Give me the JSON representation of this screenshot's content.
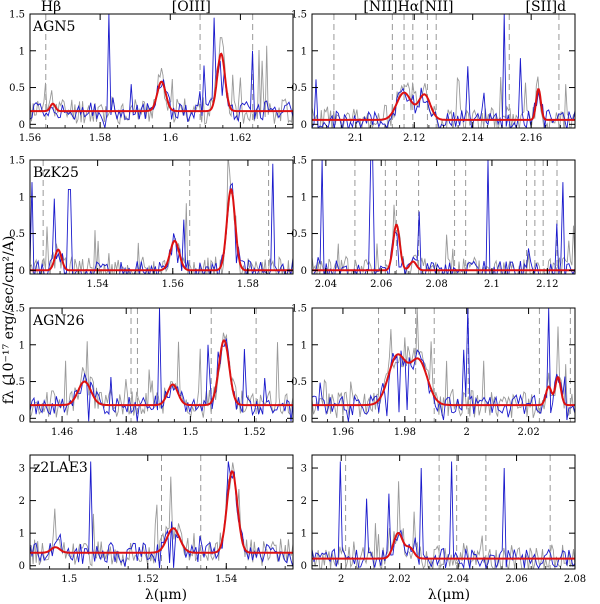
{
  "figure": {
    "ylabel": "fλ (10⁻¹⁷ erg/sec/cm²/A)",
    "xlabel_left": "λ(μm)",
    "xlabel_right": "λ(μm)",
    "colors": {
      "model": "#dd1111",
      "spectrum": "#1a1acc",
      "raw": "#9a9a9a",
      "sky": "#999999"
    }
  },
  "chart_data": [
    {
      "type": "line",
      "row": 0,
      "col": 0,
      "name": "AGN5",
      "xlim": [
        1.56,
        1.635
      ],
      "ylim": [
        -0.05,
        1.5
      ],
      "xticks": [
        1.56,
        1.58,
        1.6,
        1.62
      ],
      "xtick_labels": [
        "1.56",
        "1.58",
        "1.6",
        "1.62"
      ],
      "yticks": [
        0,
        0.5,
        1,
        1.5
      ],
      "ytick_labels": [
        "0",
        "0.5",
        "1",
        "1.5"
      ],
      "top_labels": [
        {
          "text": "Hβ",
          "x": 1.566
        },
        {
          "text": "[OIII]",
          "x": 1.606
        }
      ],
      "baseline": 0.18,
      "gaussians": [
        {
          "center": 1.5665,
          "amp": 0.1,
          "sigma": 0.0007
        },
        {
          "center": 1.5975,
          "amp": 0.4,
          "sigma": 0.0012
        },
        {
          "center": 1.6145,
          "amp": 0.78,
          "sigma": 0.0011
        }
      ],
      "sky_lines": [
        1.5645,
        1.6085,
        1.6235
      ],
      "blue_spikes": [
        {
          "x": 1.5825,
          "y": 1.5
        },
        {
          "x": 1.6095,
          "y": 0.8
        },
        {
          "x": 1.6125,
          "y": 1.45
        },
        {
          "x": 1.6235,
          "y": 1.0
        }
      ],
      "seed": 11
    },
    {
      "type": "line",
      "row": 0,
      "col": 1,
      "name": "",
      "xlim": [
        2.085,
        2.175
      ],
      "ylim": [
        -0.05,
        1.5
      ],
      "xticks": [
        2.1,
        2.12,
        2.14,
        2.16
      ],
      "xtick_labels": [
        "2.1",
        "2.12",
        "2.14",
        "2.16"
      ],
      "yticks": [
        0,
        0.5,
        1,
        1.5
      ],
      "ytick_labels": [
        "0",
        "0.5",
        "1",
        "1.5"
      ],
      "top_labels": [
        {
          "text": "[NII]Hα[NII]",
          "x": 2.118
        },
        {
          "text": "[SII]d",
          "x": 2.165
        }
      ],
      "baseline": 0.06,
      "gaussians": [
        {
          "center": 2.1165,
          "amp": 0.37,
          "sigma": 0.0025
        },
        {
          "center": 2.1235,
          "amp": 0.34,
          "sigma": 0.002
        },
        {
          "center": 2.1625,
          "amp": 0.42,
          "sigma": 0.0008
        }
      ],
      "sky_lines": [
        2.0925,
        2.1125,
        2.1165,
        2.1195,
        2.1245,
        2.1275,
        2.1525,
        2.1695
      ],
      "blue_spikes": [
        {
          "x": 2.1505,
          "y": 1.5
        },
        {
          "x": 2.1565,
          "y": 0.9
        }
      ],
      "seed": 23
    },
    {
      "type": "line",
      "row": 1,
      "col": 0,
      "name": "BzK25",
      "xlim": [
        1.522,
        1.592
      ],
      "ylim": [
        -0.05,
        1.5
      ],
      "xticks": [
        1.54,
        1.56,
        1.58
      ],
      "xtick_labels": [
        "1.54",
        "1.56",
        "1.58"
      ],
      "yticks": [
        0,
        0.5,
        1,
        1.5
      ],
      "ytick_labels": [
        "0",
        "0.5",
        "1",
        "1.5"
      ],
      "top_labels": [],
      "baseline": 0.0,
      "gaussians": [
        {
          "center": 1.5295,
          "amp": 0.28,
          "sigma": 0.0009
        },
        {
          "center": 1.5605,
          "amp": 0.4,
          "sigma": 0.0012
        },
        {
          "center": 1.5755,
          "amp": 1.1,
          "sigma": 0.0011
        }
      ],
      "sky_lines": [
        1.5255,
        1.5645,
        1.5855
      ],
      "blue_spikes": [
        {
          "x": 1.5225,
          "y": 1.2
        },
        {
          "x": 1.5325,
          "y": 1.1
        },
        {
          "x": 1.5865,
          "y": 1.45
        }
      ],
      "seed": 37
    },
    {
      "type": "line",
      "row": 1,
      "col": 1,
      "name": "",
      "xlim": [
        2.035,
        2.13
      ],
      "ylim": [
        -0.05,
        1.5
      ],
      "xticks": [
        2.04,
        2.06,
        2.08,
        2.1,
        2.12
      ],
      "xtick_labels": [
        "2.04",
        "2.06",
        "2.08",
        "2.1",
        "2.12"
      ],
      "yticks": [
        0,
        0.5,
        1,
        1.5
      ],
      "ytick_labels": [
        "0",
        "0.5",
        "1",
        "1.5"
      ],
      "top_labels": [],
      "baseline": 0.0,
      "gaussians": [
        {
          "center": 2.0655,
          "amp": 0.62,
          "sigma": 0.0012
        },
        {
          "center": 2.0715,
          "amp": 0.12,
          "sigma": 0.0012
        }
      ],
      "sky_lines": [
        2.0505,
        2.0615,
        2.0655,
        2.0735,
        2.0865,
        2.0905,
        2.1125,
        2.1155,
        2.1185,
        2.1235
      ],
      "blue_spikes": [
        {
          "x": 2.0385,
          "y": 1.5
        },
        {
          "x": 2.0565,
          "y": 1.5
        },
        {
          "x": 2.0735,
          "y": 0.8
        },
        {
          "x": 2.0985,
          "y": 1.5
        },
        {
          "x": 2.1255,
          "y": 1.2
        }
      ],
      "seed": 41
    },
    {
      "type": "line",
      "row": 2,
      "col": 0,
      "name": "AGN26",
      "xlim": [
        1.45,
        1.532
      ],
      "ylim": [
        -0.05,
        1.5
      ],
      "xticks": [
        1.46,
        1.48,
        1.5,
        1.52
      ],
      "xtick_labels": [
        "1.46",
        "1.48",
        "1.5",
        "1.52"
      ],
      "yticks": [
        0,
        0.5,
        1,
        1.5
      ],
      "ytick_labels": [
        "0",
        "0.5",
        "1",
        "1.5"
      ],
      "top_labels": [],
      "baseline": 0.18,
      "gaussians": [
        {
          "center": 1.467,
          "amp": 0.32,
          "sigma": 0.002
        },
        {
          "center": 1.4945,
          "amp": 0.28,
          "sigma": 0.0016
        },
        {
          "center": 1.5105,
          "amp": 0.88,
          "sigma": 0.0016
        }
      ],
      "sky_lines": [
        1.4815,
        1.4835,
        1.5065,
        1.5205
      ],
      "blue_spikes": [
        {
          "x": 1.4905,
          "y": 1.5
        },
        {
          "x": 1.5055,
          "y": 1.0
        }
      ],
      "seed": 53
    },
    {
      "type": "line",
      "row": 2,
      "col": 1,
      "name": "",
      "xlim": [
        1.95,
        2.035
      ],
      "ylim": [
        -0.05,
        1.5
      ],
      "xticks": [
        1.96,
        1.98,
        2,
        2.02
      ],
      "xtick_labels": [
        "1.96",
        "1.98",
        "2",
        "2.02"
      ],
      "yticks": [
        0,
        0.5,
        1,
        1.5
      ],
      "ytick_labels": [
        "0",
        "0.5",
        "1",
        "1.5"
      ],
      "top_labels": [],
      "baseline": 0.18,
      "gaussians": [
        {
          "center": 1.9775,
          "amp": 0.66,
          "sigma": 0.0028
        },
        {
          "center": 1.9845,
          "amp": 0.6,
          "sigma": 0.0028
        },
        {
          "center": 2.0265,
          "amp": 0.25,
          "sigma": 0.0009
        },
        {
          "center": 2.0295,
          "amp": 0.38,
          "sigma": 0.0009
        }
      ],
      "sky_lines": [
        1.9715,
        1.9835,
        1.9895,
        2.0005,
        2.0235,
        2.0335
      ],
      "blue_spikes": [
        {
          "x": 2.0005,
          "y": 1.5
        },
        {
          "x": 2.0265,
          "y": 1.5
        }
      ],
      "seed": 67
    },
    {
      "type": "line",
      "row": 3,
      "col": 0,
      "name": "z2LAE3",
      "xlim": [
        1.49,
        1.557
      ],
      "ylim": [
        -0.1,
        3.4
      ],
      "xticks": [
        1.5,
        1.52,
        1.54
      ],
      "xtick_labels": [
        "1.5",
        "1.52",
        "1.54"
      ],
      "yticks": [
        0,
        1,
        2,
        3
      ],
      "ytick_labels": [
        "0",
        "1",
        "2",
        "3"
      ],
      "top_labels": [],
      "baseline": 0.4,
      "gaussians": [
        {
          "center": 1.4965,
          "amp": 0.17,
          "sigma": 0.0011
        },
        {
          "center": 1.5265,
          "amp": 0.75,
          "sigma": 0.0016
        },
        {
          "center": 1.5415,
          "amp": 2.5,
          "sigma": 0.0013
        }
      ],
      "sky_lines": [
        1.5235,
        1.5335
      ],
      "blue_spikes": [
        {
          "x": 1.5055,
          "y": 3.2
        },
        {
          "x": 1.5405,
          "y": 3.2
        }
      ],
      "seed": 79
    },
    {
      "type": "line",
      "row": 3,
      "col": 1,
      "name": "",
      "xlim": [
        1.99,
        2.08
      ],
      "ylim": [
        -0.1,
        3.4
      ],
      "xticks": [
        2,
        2.02,
        2.04,
        2.06,
        2.08
      ],
      "xtick_labels": [
        "2",
        "2.02",
        "2.04",
        "2.06",
        "2.08"
      ],
      "yticks": [
        0,
        1,
        2,
        3
      ],
      "ytick_labels": [
        "0",
        "1",
        "2",
        "3"
      ],
      "top_labels": [],
      "baseline": 0.22,
      "gaussians": [
        {
          "center": 2.0195,
          "amp": 0.78,
          "sigma": 0.0016
        },
        {
          "center": 2.0235,
          "amp": 0.32,
          "sigma": 0.0014
        }
      ],
      "sky_lines": [
        2.0015,
        2.0335,
        2.0395,
        2.0495,
        2.0715
      ],
      "blue_spikes": [
        {
          "x": 1.9995,
          "y": 3.2
        },
        {
          "x": 2.0275,
          "y": 3.0
        },
        {
          "x": 2.0375,
          "y": 3.2
        },
        {
          "x": 2.0555,
          "y": 3.0
        }
      ],
      "seed": 97
    }
  ]
}
